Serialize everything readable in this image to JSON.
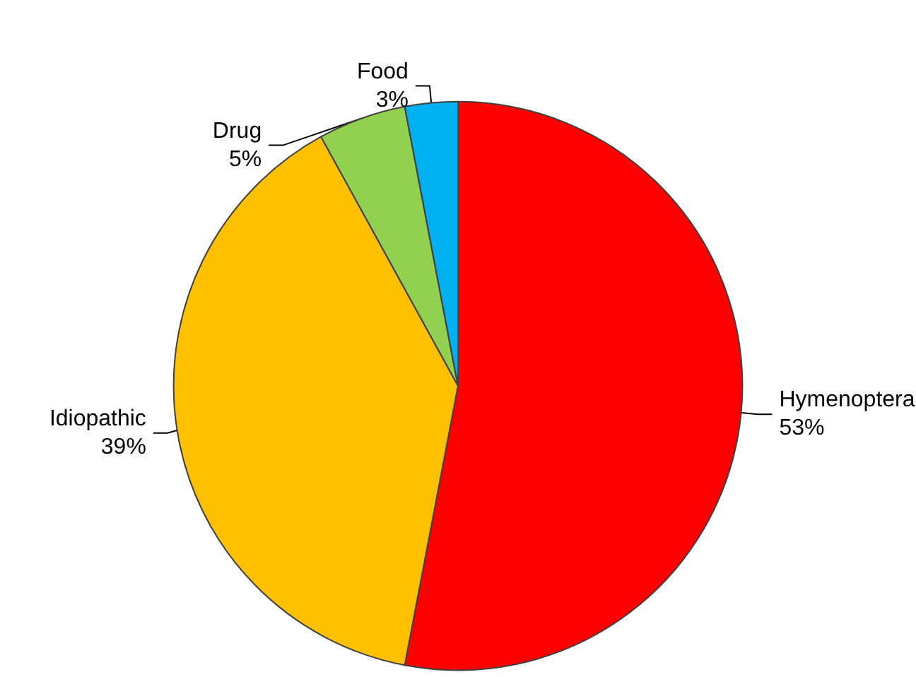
{
  "chart_data": {
    "type": "pie",
    "categories": [
      "Hymenoptera",
      "Idiopathic",
      "Drug",
      "Food"
    ],
    "values": [
      53,
      39,
      5,
      3
    ],
    "value_labels": [
      "53%",
      "39%",
      "5%",
      "3%"
    ],
    "colors": [
      "#ff0000",
      "#ffc000",
      "#92d050",
      "#00b0f0"
    ],
    "legend": false
  }
}
